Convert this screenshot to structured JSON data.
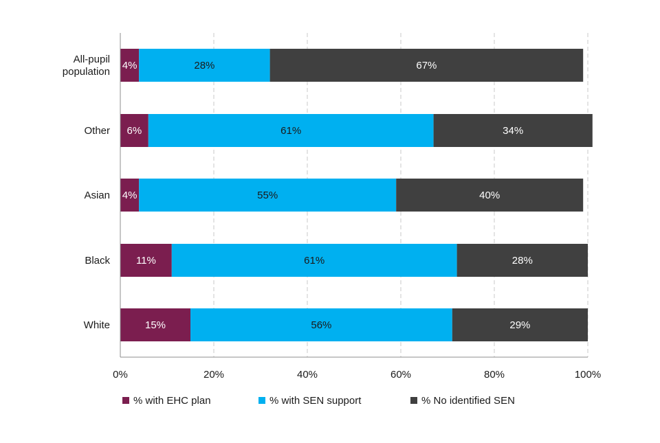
{
  "chart_data": {
    "type": "bar",
    "orientation": "horizontal",
    "stacked": true,
    "categories": [
      "All-pupil population",
      "Other",
      "Asian",
      "Black",
      "White"
    ],
    "series": [
      {
        "name": "% with EHC plan",
        "color": "#7b1e4f",
        "label_color": "#ffffff",
        "values": [
          4,
          6,
          4,
          11,
          15
        ],
        "labels": [
          "4%",
          "6%",
          "4%",
          "11%",
          "15%"
        ]
      },
      {
        "name": "% with SEN support",
        "color": "#00b0f0",
        "label_color": "#1a1a1a",
        "values": [
          28,
          61,
          55,
          61,
          56
        ],
        "labels": [
          "28%",
          "61%",
          "55%",
          "61%",
          "56%"
        ]
      },
      {
        "name": "% No identified SEN",
        "color": "#404040",
        "label_color": "#ffffff",
        "values": [
          67,
          34,
          40,
          28,
          29
        ],
        "labels": [
          "67%",
          "34%",
          "40%",
          "28%",
          "29%"
        ]
      }
    ],
    "xlim": [
      0,
      100
    ],
    "x_ticks": [
      0,
      20,
      40,
      60,
      80,
      100
    ],
    "x_tick_labels": [
      "0%",
      "20%",
      "40%",
      "60%",
      "80%",
      "100%"
    ],
    "grid": "vertical dashed",
    "legend": "bottom"
  }
}
